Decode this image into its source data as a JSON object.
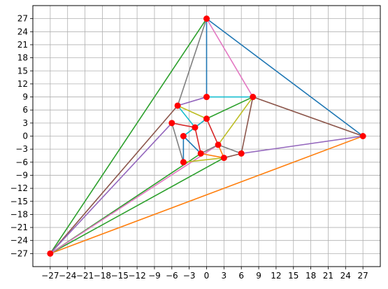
{
  "chart_data": {
    "type": "scatter",
    "title": "",
    "xlabel": "",
    "ylabel": "",
    "xlim": [
      -30,
      30
    ],
    "ylim": [
      -30,
      30
    ],
    "grid": true,
    "xticks": [
      -27,
      -24,
      -21,
      -18,
      -15,
      -12,
      -9,
      -6,
      -3,
      0,
      3,
      6,
      9,
      12,
      15,
      18,
      21,
      24,
      27
    ],
    "yticks": [
      -27,
      -24,
      -21,
      -18,
      -15,
      -12,
      -9,
      -6,
      -3,
      0,
      3,
      6,
      9,
      12,
      15,
      18,
      21,
      24,
      27
    ],
    "xtick_labels": [
      "−27",
      "−24",
      "−21",
      "−18",
      "−15",
      "−12",
      "−9",
      "−6",
      "−3",
      "0",
      "3",
      "6",
      "9",
      "12",
      "15",
      "18",
      "21",
      "24",
      "27"
    ],
    "ytick_labels": [
      "−27",
      "−24",
      "−21",
      "−18",
      "−15",
      "−12",
      "−9",
      "−6",
      "−3",
      "0",
      "3",
      "6",
      "9",
      "12",
      "15",
      "18",
      "21",
      "24",
      "27"
    ],
    "points": [
      {
        "x": 0,
        "y": 27
      },
      {
        "x": -27,
        "y": -27
      },
      {
        "x": 27,
        "y": 0
      },
      {
        "x": 0,
        "y": 9
      },
      {
        "x": 8,
        "y": 9
      },
      {
        "x": -5,
        "y": 7
      },
      {
        "x": -6,
        "y": 3
      },
      {
        "x": 0,
        "y": 4
      },
      {
        "x": -2,
        "y": 2
      },
      {
        "x": -4,
        "y": 0
      },
      {
        "x": 2,
        "y": -2
      },
      {
        "x": -1,
        "y": -4
      },
      {
        "x": 6,
        "y": -4
      },
      {
        "x": 3,
        "y": -5
      },
      {
        "x": -4,
        "y": -6
      }
    ],
    "segments": [
      {
        "x1": 0,
        "y1": 27,
        "x2": 27,
        "y2": 0,
        "color": "#1f77b4"
      },
      {
        "x1": 0,
        "y1": 27,
        "x2": 0,
        "y2": 9,
        "color": "#1f77b4"
      },
      {
        "x1": 0,
        "y1": 27,
        "x2": -27,
        "y2": -27,
        "color": "#2ca02c"
      },
      {
        "x1": 0,
        "y1": 27,
        "x2": -5,
        "y2": 7,
        "color": "#7f7f7f"
      },
      {
        "x1": 0,
        "y1": 27,
        "x2": 8,
        "y2": 9,
        "color": "#e377c2"
      },
      {
        "x1": -27,
        "y1": -27,
        "x2": 27,
        "y2": 0,
        "color": "#ff7f0e"
      },
      {
        "x1": -27,
        "y1": -27,
        "x2": -5,
        "y2": 7,
        "color": "#8c564b"
      },
      {
        "x1": -27,
        "y1": -27,
        "x2": -6,
        "y2": 3,
        "color": "#9467bd"
      },
      {
        "x1": -27,
        "y1": -27,
        "x2": -1,
        "y2": -4,
        "color": "#2ca02c"
      },
      {
        "x1": -27,
        "y1": -27,
        "x2": 3,
        "y2": -5,
        "color": "#2ca02c"
      },
      {
        "x1": -27,
        "y1": -27,
        "x2": 2,
        "y2": -2,
        "color": "#e377c2"
      },
      {
        "x1": 0,
        "y1": 9,
        "x2": 8,
        "y2": 9,
        "color": "#17becf"
      },
      {
        "x1": 0,
        "y1": 9,
        "x2": -5,
        "y2": 7,
        "color": "#9467bd"
      },
      {
        "x1": 8,
        "y1": 9,
        "x2": 27,
        "y2": 0,
        "color": "#8c564b"
      },
      {
        "x1": 8,
        "y1": 9,
        "x2": 6,
        "y2": -4,
        "color": "#8c564b"
      },
      {
        "x1": 8,
        "y1": 9,
        "x2": 0,
        "y2": 4,
        "color": "#2ca02c"
      },
      {
        "x1": 8,
        "y1": 9,
        "x2": 2,
        "y2": -2,
        "color": "#bcbd22"
      },
      {
        "x1": 6,
        "y1": -4,
        "x2": 27,
        "y2": 0,
        "color": "#9467bd"
      },
      {
        "x1": 6,
        "y1": -4,
        "x2": 3,
        "y2": -5,
        "color": "#8c564b"
      },
      {
        "x1": -5,
        "y1": 7,
        "x2": 0,
        "y2": 4,
        "color": "#bcbd22"
      },
      {
        "x1": -5,
        "y1": 7,
        "x2": -2,
        "y2": 2,
        "color": "#17becf"
      },
      {
        "x1": -6,
        "y1": 3,
        "x2": -4,
        "y2": -6,
        "color": "#7f7f7f"
      },
      {
        "x1": -6,
        "y1": 3,
        "x2": -2,
        "y2": 2,
        "color": "#d62728"
      },
      {
        "x1": 0,
        "y1": 4,
        "x2": -2,
        "y2": 2,
        "color": "#d62728"
      },
      {
        "x1": 0,
        "y1": 4,
        "x2": 2,
        "y2": -2,
        "color": "#d62728"
      },
      {
        "x1": -2,
        "y1": 2,
        "x2": -4,
        "y2": 0,
        "color": "#17becf"
      },
      {
        "x1": -2,
        "y1": 2,
        "x2": -1,
        "y2": -4,
        "color": "#d62728"
      },
      {
        "x1": -4,
        "y1": 0,
        "x2": -4,
        "y2": -6,
        "color": "#1f77b4"
      },
      {
        "x1": -4,
        "y1": 0,
        "x2": -1,
        "y2": -4,
        "color": "#1f77b4"
      },
      {
        "x1": 2,
        "y1": -2,
        "x2": 3,
        "y2": -5,
        "color": "#ff7f0e"
      },
      {
        "x1": 2,
        "y1": -2,
        "x2": -1,
        "y2": -4,
        "color": "#7f7f7f"
      },
      {
        "x1": -1,
        "y1": -4,
        "x2": 3,
        "y2": -5,
        "color": "#ff7f0e"
      },
      {
        "x1": -4,
        "y1": -6,
        "x2": 3,
        "y2": -5,
        "color": "#bcbd22"
      },
      {
        "x1": 2,
        "y1": -2,
        "x2": 6,
        "y2": -4,
        "color": "#7f7f7f"
      },
      {
        "x1": 0,
        "y1": 4,
        "x2": -4,
        "y2": 0,
        "color": "#17becf"
      }
    ],
    "point_color": "#ff0000",
    "grid_color": "#b0b0b0"
  }
}
